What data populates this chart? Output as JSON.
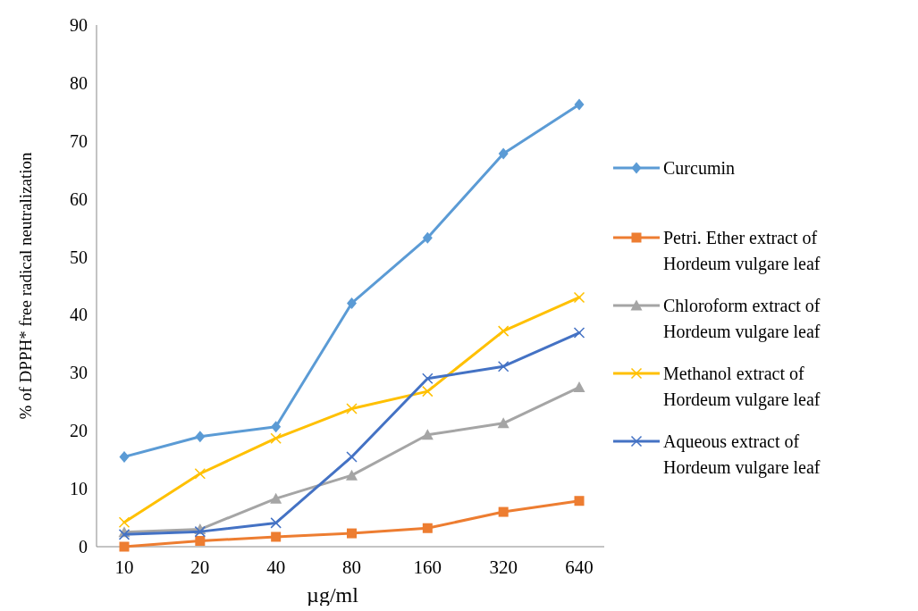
{
  "chart_data": {
    "type": "line",
    "xlabel": "µg/ml",
    "ylabel": "% of DPPH* free radical neutralization",
    "categories": [
      "10",
      "20",
      "40",
      "80",
      "160",
      "320",
      "640"
    ],
    "ylim": [
      0,
      90
    ],
    "yticks": [
      0,
      10,
      20,
      30,
      40,
      50,
      60,
      70,
      80,
      90
    ],
    "grid": false,
    "legend": "right",
    "series": [
      {
        "name": "Curcumin",
        "color": "#5b9bd5",
        "marker": "diamond",
        "values": [
          15.5,
          19,
          20.7,
          42,
          53.3,
          67.8,
          76.3
        ]
      },
      {
        "name": "Petri. Ether extract of Hordeum vulgare leaf",
        "color": "#ed7d31",
        "marker": "square",
        "values": [
          0,
          1,
          1.7,
          2.3,
          3.2,
          6,
          7.9
        ]
      },
      {
        "name": "Chloroform extract of Hordeum vulgare leaf",
        "color": "#a5a5a5",
        "marker": "triangle",
        "values": [
          2.5,
          3,
          8.3,
          12.3,
          19.3,
          21.3,
          27.5
        ]
      },
      {
        "name": "Methanol extract of Hordeum vulgare leaf",
        "color": "#ffc000",
        "marker": "cross",
        "values": [
          4.2,
          12.6,
          18.7,
          23.8,
          26.8,
          37.2,
          43
        ]
      },
      {
        "name": "Aqueous extract of Hordeum vulgare leaf",
        "color": "#4472c4",
        "marker": "cross",
        "values": [
          2.1,
          2.6,
          4.1,
          15.5,
          29,
          31.1,
          36.9
        ]
      }
    ]
  }
}
